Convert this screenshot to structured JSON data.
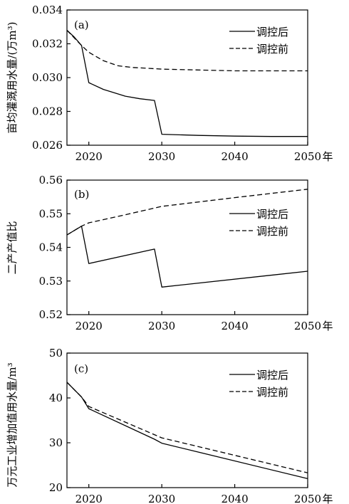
{
  "chart_data": [
    {
      "type": "line",
      "panel_label": "(a)",
      "ylabel": "亩均灌溉用水量/(万m³)",
      "xlabel_suffix": "年",
      "xlim": [
        2017,
        2050
      ],
      "ylim": [
        0.026,
        0.034
      ],
      "x_ticks": [
        2020,
        2030,
        2040,
        2050
      ],
      "y_ticks": [
        0.026,
        0.028,
        0.03,
        0.032,
        0.034
      ],
      "y_tick_labels": [
        "0.026",
        "0.028",
        "0.030",
        "0.032",
        "0.034"
      ],
      "grid": false,
      "legend_position": "top-right",
      "series": [
        {
          "name": "调控后",
          "dash": "solid",
          "x": [
            2017,
            2018,
            2019,
            2020,
            2022,
            2025,
            2027,
            2029,
            2030,
            2035,
            2040,
            2045,
            2050
          ],
          "y": [
            0.0328,
            0.0324,
            0.0319,
            0.0297,
            0.0293,
            0.0289,
            0.02875,
            0.02865,
            0.02665,
            0.02658,
            0.02654,
            0.02652,
            0.02652
          ]
        },
        {
          "name": "调控前",
          "dash": "dashed",
          "x": [
            2017,
            2019,
            2020,
            2022,
            2024,
            2026,
            2028,
            2030,
            2035,
            2040,
            2045,
            2050
          ],
          "y": [
            0.0328,
            0.0319,
            0.0315,
            0.031,
            0.0307,
            0.0306,
            0.03055,
            0.0305,
            0.03045,
            0.0304,
            0.0304,
            0.0304
          ]
        }
      ]
    },
    {
      "type": "line",
      "panel_label": "(b)",
      "ylabel": "二产产值比",
      "xlabel_suffix": "年",
      "xlim": [
        2017,
        2050
      ],
      "ylim": [
        0.52,
        0.56
      ],
      "x_ticks": [
        2020,
        2030,
        2040,
        2050
      ],
      "y_ticks": [
        0.52,
        0.53,
        0.54,
        0.55,
        0.56
      ],
      "y_tick_labels": [
        "0.52",
        "0.53",
        "0.54",
        "0.55",
        "0.56"
      ],
      "grid": false,
      "legend_position": "center-right",
      "series": [
        {
          "name": "调控后",
          "dash": "solid",
          "x": [
            2017,
            2019,
            2020,
            2029,
            2030,
            2050
          ],
          "y": [
            0.5437,
            0.5463,
            0.5352,
            0.5395,
            0.5282,
            0.5329
          ]
        },
        {
          "name": "调控前",
          "dash": "dashed",
          "x": [
            2017,
            2019,
            2020,
            2025,
            2030,
            2040,
            2050
          ],
          "y": [
            0.5437,
            0.5463,
            0.5473,
            0.5497,
            0.5522,
            0.5548,
            0.5573
          ]
        }
      ]
    },
    {
      "type": "line",
      "panel_label": "(c)",
      "ylabel": "万元工业增加值用水量/m³",
      "xlabel_suffix": "年",
      "xlim": [
        2017,
        2050
      ],
      "ylim": [
        20,
        50
      ],
      "x_ticks": [
        2020,
        2030,
        2040,
        2050
      ],
      "y_ticks": [
        20,
        30,
        40,
        50
      ],
      "y_tick_labels": [
        "20",
        "30",
        "40",
        "50"
      ],
      "grid": false,
      "legend_position": "top-right",
      "series": [
        {
          "name": "调控后",
          "dash": "solid",
          "x": [
            2017,
            2019,
            2020,
            2029,
            2030,
            2050
          ],
          "y": [
            43.5,
            40.2,
            37.6,
            30.8,
            29.9,
            22.0
          ]
        },
        {
          "name": "调控前",
          "dash": "dashed",
          "x": [
            2017,
            2019,
            2020,
            2030,
            2050
          ],
          "y": [
            43.5,
            40.2,
            38.1,
            31.1,
            23.3
          ]
        }
      ]
    }
  ]
}
